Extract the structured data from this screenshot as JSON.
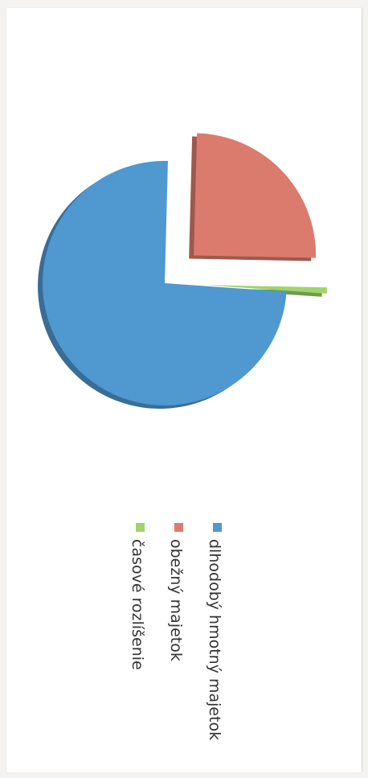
{
  "chart_data": {
    "type": "pie",
    "labels": [
      "dlhodobý hmotný majetok",
      "obežný majetok",
      "časové rozlíšenie"
    ],
    "values": [
      74.3,
      24.9,
      0.8
    ],
    "colors": [
      "#4f98d0",
      "#db7b6d",
      "#9ed56a"
    ],
    "exploded": [
      false,
      true,
      true
    ],
    "legend_position": "right",
    "rotated": "90deg clockwise"
  },
  "legend": {
    "items": [
      {
        "label": "dlhodobý hmotný majetok",
        "color": "#4f98d0"
      },
      {
        "label": "obežný majetok",
        "color": "#db7b6d"
      },
      {
        "label": "časové rozlíšenie",
        "color": "#9ed56a"
      }
    ]
  }
}
